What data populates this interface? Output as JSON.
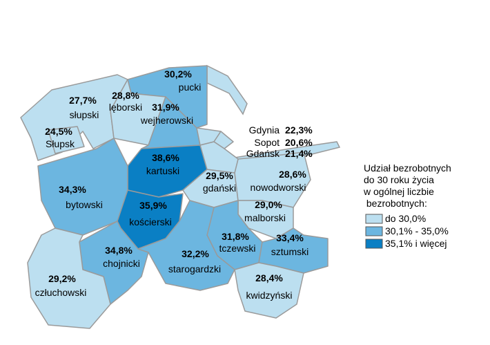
{
  "map": {
    "regions": [
      {
        "name": "pucki",
        "value": 30.2,
        "value_label": "30,2%"
      },
      {
        "name": "słupski",
        "value": 27.7,
        "value_label": "27,7%"
      },
      {
        "name": "lęborski",
        "value": 28.8,
        "value_label": "28,8%"
      },
      {
        "name": "wejherowski",
        "value": 31.9,
        "value_label": "31,9%"
      },
      {
        "name": "Słupsk",
        "value": 24.5,
        "value_label": "24,5%"
      },
      {
        "name": "kartuski",
        "value": 38.6,
        "value_label": "38,6%"
      },
      {
        "name": "gdański",
        "value": 29.5,
        "value_label": "29,5%"
      },
      {
        "name": "nowodworski",
        "value": 28.6,
        "value_label": "28,6%"
      },
      {
        "name": "bytowski",
        "value": 34.3,
        "value_label": "34,3%"
      },
      {
        "name": "malborski",
        "value": 29.0,
        "value_label": "29,0%"
      },
      {
        "name": "kościerski",
        "value": 35.9,
        "value_label": "35,9%"
      },
      {
        "name": "tczewski",
        "value": 31.8,
        "value_label": "31,8%"
      },
      {
        "name": "sztumski",
        "value": 33.4,
        "value_label": "33,4%"
      },
      {
        "name": "chojnicki",
        "value": 34.8,
        "value_label": "34,8%"
      },
      {
        "name": "starogardzki",
        "value": 32.2,
        "value_label": "32,2%"
      },
      {
        "name": "kwidzyński",
        "value": 28.4,
        "value_label": "28,4%"
      },
      {
        "name": "człuchowski",
        "value": 29.2,
        "value_label": "29,2%"
      }
    ],
    "cities": [
      {
        "name": "Gdynia",
        "value": 22.3,
        "value_label": "22,3%"
      },
      {
        "name": "Sopot",
        "value": 20.6,
        "value_label": "20,6%"
      },
      {
        "name": "Gdańsk",
        "value": 21.4,
        "value_label": "21,4%"
      }
    ],
    "legend": {
      "title_lines": [
        "Udział bezrobotnych",
        "do 30 roku życia",
        "w ogólnej liczbie",
        " bezrobotnych:"
      ],
      "classes": [
        {
          "label": "do 30,0%",
          "max": 30.0,
          "color": "#bcdff0"
        },
        {
          "label": "30,1% - 35,0%",
          "min": 30.1,
          "max": 35.0,
          "color": "#6cb6e0"
        },
        {
          "label": "35,1% i więcej",
          "min": 35.1,
          "color": "#0a7fc4"
        }
      ]
    }
  }
}
